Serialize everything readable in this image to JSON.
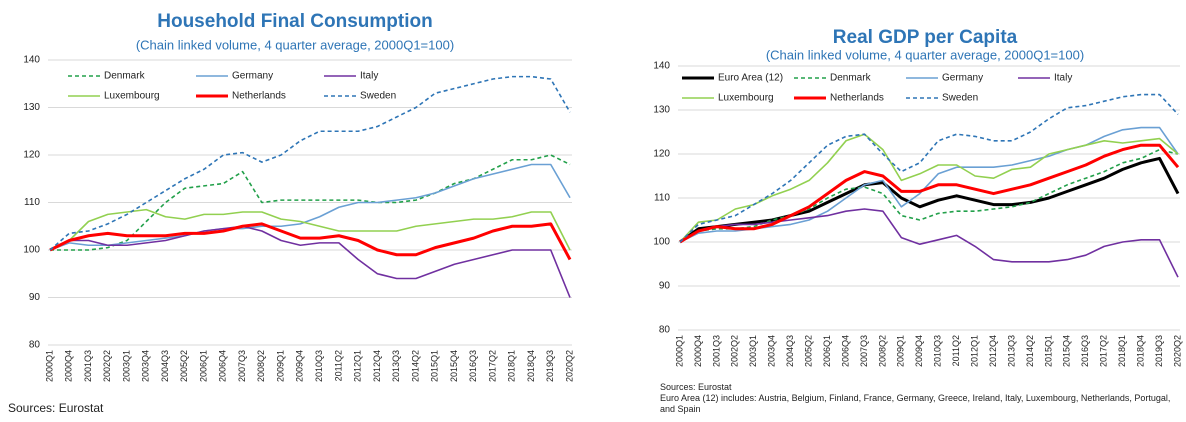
{
  "chart_data": [
    {
      "type": "line",
      "title": "Household Final Consumption",
      "subtitle": "(Chain linked volume, 4 quarter average, 2000Q1=100)",
      "source": "Sources: Eurostat",
      "categories": [
        "2000Q1",
        "2000Q4",
        "2001Q3",
        "2002Q2",
        "2003Q1",
        "2003Q4",
        "2004Q3",
        "2005Q2",
        "2006Q1",
        "2006Q4",
        "2007Q3",
        "2008Q2",
        "2009Q1",
        "2009Q4",
        "2010Q3",
        "2011Q2",
        "2012Q1",
        "2012Q4",
        "2013Q3",
        "2014Q2",
        "2015Q1",
        "2015Q4",
        "2016Q3",
        "2017Q2",
        "2018Q1",
        "2018Q4",
        "2019Q3",
        "2020Q2"
      ],
      "ylim": [
        80,
        140
      ],
      "yticks": [
        80,
        90,
        100,
        110,
        120,
        130,
        140
      ],
      "grid": true,
      "series": [
        {
          "name": "Denmark",
          "color": "#22a04a",
          "dashed": true,
          "values": [
            100,
            100,
            100,
            100.5,
            102,
            106,
            110,
            113,
            113.5,
            114,
            116.5,
            110,
            110.5,
            110.5,
            110.5,
            110.5,
            110.5,
            110,
            110,
            110.5,
            112,
            114,
            115,
            117,
            119,
            119,
            120,
            118
          ]
        },
        {
          "name": "Germany",
          "color": "#6aa0d4",
          "values": [
            100,
            101.5,
            101,
            101,
            101.5,
            102,
            102.5,
            103,
            104,
            104.5,
            104.5,
            105,
            105,
            105.5,
            107,
            109,
            110,
            110,
            110.5,
            111,
            112,
            113.5,
            115,
            116,
            117,
            118,
            118,
            111
          ]
        },
        {
          "name": "Italy",
          "color": "#7030a0",
          "values": [
            100,
            102,
            102,
            101,
            101,
            101.5,
            102,
            103,
            104,
            104.5,
            105,
            104,
            102,
            101,
            101.5,
            101.5,
            98,
            95,
            94,
            94,
            95.5,
            97,
            98,
            99,
            100,
            100,
            100,
            90
          ]
        },
        {
          "name": "Luxembourg",
          "color": "#92d050",
          "values": [
            100,
            102,
            106,
            107.5,
            108,
            108.5,
            107,
            106.5,
            107.5,
            107.5,
            108,
            108,
            106.5,
            106,
            105,
            104,
            104,
            104,
            104,
            105,
            105.5,
            106,
            106.5,
            106.5,
            107,
            108,
            108,
            100
          ]
        },
        {
          "name": "Netherlands",
          "color": "#ff0000",
          "width": 3,
          "values": [
            100,
            102,
            103,
            103.5,
            103,
            103,
            103,
            103.5,
            103.5,
            104,
            105,
            105.5,
            104,
            102.5,
            102.5,
            103,
            102,
            100,
            99,
            99,
            100.5,
            101.5,
            102.5,
            104,
            105,
            105,
            105.5,
            98
          ]
        },
        {
          "name": "Sweden",
          "color": "#2e75b6",
          "dashed": true,
          "values": [
            100,
            103.5,
            104,
            105.5,
            107.5,
            110,
            112.5,
            115,
            117,
            120,
            120.5,
            118.5,
            120,
            123,
            125,
            125,
            125,
            126,
            128,
            130,
            133,
            134,
            135,
            136,
            136.5,
            136.5,
            136,
            129
          ]
        }
      ]
    },
    {
      "type": "line",
      "title": "Real GDP per Capita",
      "subtitle": "(Chain linked volume, 4 quarter average, 2000Q1=100)",
      "source": "Sources: Eurostat",
      "note": "Euro Area (12) includes: Austria, Belgium, Finland, France, Germany, Greece, Ireland, Italy, Luxembourg, Netherlands, Portugal, and Spain",
      "categories": [
        "2000Q1",
        "2000Q4",
        "2001Q3",
        "2002Q2",
        "2003Q1",
        "2003Q4",
        "2004Q3",
        "2005Q2",
        "2006Q1",
        "2006Q4",
        "2007Q3",
        "2008Q2",
        "2009Q1",
        "2009Q4",
        "2010Q3",
        "2011Q2",
        "2012Q1",
        "2012Q4",
        "2013Q3",
        "2014Q2",
        "2015Q1",
        "2015Q4",
        "2016Q3",
        "2017Q2",
        "2018Q1",
        "2018Q4",
        "2019Q3",
        "2020Q2"
      ],
      "ylim": [
        80,
        140
      ],
      "yticks": [
        80,
        90,
        100,
        110,
        120,
        130,
        140
      ],
      "grid": true,
      "series": [
        {
          "name": "Euro Area (12)",
          "color": "#000000",
          "width": 3,
          "values": [
            100,
            103,
            103.5,
            104,
            104.5,
            105,
            106,
            107,
            109,
            111,
            113,
            113.5,
            110,
            108,
            109.5,
            110.5,
            109.5,
            108.5,
            108.5,
            109,
            110,
            111.5,
            113,
            114.5,
            116.5,
            118,
            119,
            111
          ]
        },
        {
          "name": "Denmark",
          "color": "#22a04a",
          "dashed": true,
          "values": [
            100,
            102.5,
            103,
            103,
            103.5,
            105,
            106,
            107.5,
            110,
            112,
            112.5,
            111,
            106,
            105,
            106.5,
            107,
            107,
            107.5,
            108,
            109,
            111,
            113,
            114.5,
            116,
            118,
            119,
            121,
            120
          ]
        },
        {
          "name": "Germany",
          "color": "#6aa0d4",
          "values": [
            100,
            102,
            102.5,
            102.5,
            103,
            103.5,
            104,
            105,
            107,
            110,
            113,
            114,
            108,
            111,
            115.5,
            117,
            117,
            117,
            117.5,
            118.5,
            119.5,
            121,
            122,
            124,
            125.5,
            126,
            126,
            120
          ]
        },
        {
          "name": "Italy",
          "color": "#7030a0",
          "values": [
            100,
            102.5,
            103.5,
            104,
            104,
            104.5,
            105,
            105.5,
            106,
            107,
            107.5,
            107,
            101,
            99.5,
            100.5,
            101.5,
            99,
            96,
            95.5,
            95.5,
            95.5,
            96,
            97,
            99,
            100,
            100.5,
            100.5,
            92
          ]
        },
        {
          "name": "Luxembourg",
          "color": "#92d050",
          "values": [
            100,
            104.5,
            105,
            107.5,
            108.5,
            110.5,
            112,
            114,
            118,
            123,
            124.5,
            121,
            114,
            115.5,
            117.5,
            117.5,
            115,
            114.5,
            116.5,
            117,
            120,
            121,
            122,
            123,
            122.5,
            123,
            123.5,
            120
          ]
        },
        {
          "name": "Netherlands",
          "color": "#ff0000",
          "width": 3,
          "values": [
            100,
            102.5,
            103.5,
            103,
            103,
            104,
            106,
            108,
            111,
            114,
            116,
            115,
            111.5,
            111.5,
            113,
            113,
            112,
            111,
            112,
            113,
            114.5,
            116,
            117.5,
            119.5,
            121,
            122,
            122,
            117
          ]
        },
        {
          "name": "Sweden",
          "color": "#2e75b6",
          "dashed": true,
          "values": [
            100,
            104,
            105,
            106,
            108.5,
            111,
            114,
            118,
            122,
            124,
            124.5,
            120,
            116,
            118,
            123,
            124.5,
            124,
            123,
            123,
            125,
            128,
            130.5,
            131,
            132,
            133,
            133.5,
            133.5,
            129
          ]
        }
      ]
    }
  ]
}
